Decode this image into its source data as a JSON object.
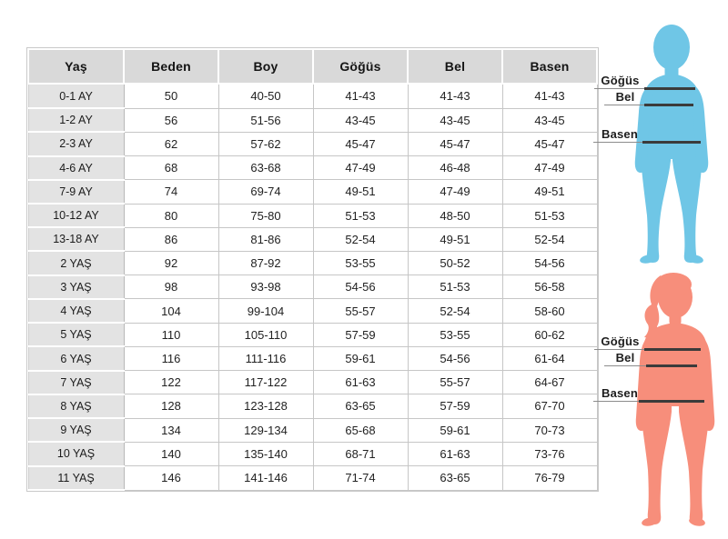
{
  "table": {
    "columns": [
      "Yaş",
      "Beden",
      "Boy",
      "Göğüs",
      "Bel",
      "Basen"
    ],
    "rows": [
      [
        "0-1 AY",
        "50",
        "40-50",
        "41-43",
        "41-43",
        "41-43"
      ],
      [
        "1-2 AY",
        "56",
        "51-56",
        "43-45",
        "43-45",
        "43-45"
      ],
      [
        "2-3 AY",
        "62",
        "57-62",
        "45-47",
        "45-47",
        "45-47"
      ],
      [
        "4-6 AY",
        "68",
        "63-68",
        "47-49",
        "46-48",
        "47-49"
      ],
      [
        "7-9 AY",
        "74",
        "69-74",
        "49-51",
        "47-49",
        "49-51"
      ],
      [
        "10-12 AY",
        "80",
        "75-80",
        "51-53",
        "48-50",
        "51-53"
      ],
      [
        "13-18 AY",
        "86",
        "81-86",
        "52-54",
        "49-51",
        "52-54"
      ],
      [
        "2 YAŞ",
        "92",
        "87-92",
        "53-55",
        "50-52",
        "54-56"
      ],
      [
        "3 YAŞ",
        "98",
        "93-98",
        "54-56",
        "51-53",
        "56-58"
      ],
      [
        "4 YAŞ",
        "104",
        "99-104",
        "55-57",
        "52-54",
        "58-60"
      ],
      [
        "5 YAŞ",
        "110",
        "105-110",
        "57-59",
        "53-55",
        "60-62"
      ],
      [
        "6 YAŞ",
        "116",
        "111-116",
        "59-61",
        "54-56",
        "61-64"
      ],
      [
        "7 YAŞ",
        "122",
        "117-122",
        "61-63",
        "55-57",
        "64-67"
      ],
      [
        "8 YAŞ",
        "128",
        "123-128",
        "63-65",
        "57-59",
        "67-70"
      ],
      [
        "9 YAŞ",
        "134",
        "129-134",
        "65-68",
        "59-61",
        "70-73"
      ],
      [
        "10 YAŞ",
        "140",
        "135-140",
        "68-71",
        "61-63",
        "73-76"
      ],
      [
        "11 YAŞ",
        "146",
        "141-146",
        "71-74",
        "63-65",
        "76-79"
      ]
    ]
  },
  "figures": [
    {
      "name": "child-silhouette-blue",
      "color": "#6fc6e6",
      "measures": [
        "Göğüs",
        "Bel",
        "Basen"
      ]
    },
    {
      "name": "girl-silhouette-pink",
      "color": "#f78e7b",
      "measures": [
        "Göğüs",
        "Bel",
        "Basen"
      ]
    }
  ],
  "colors": {
    "measure_line": "#3b3b3b",
    "header_bg": "#d9d9d9",
    "row_label_bg": "#e3e3e3",
    "border": "#c6c6c6"
  }
}
